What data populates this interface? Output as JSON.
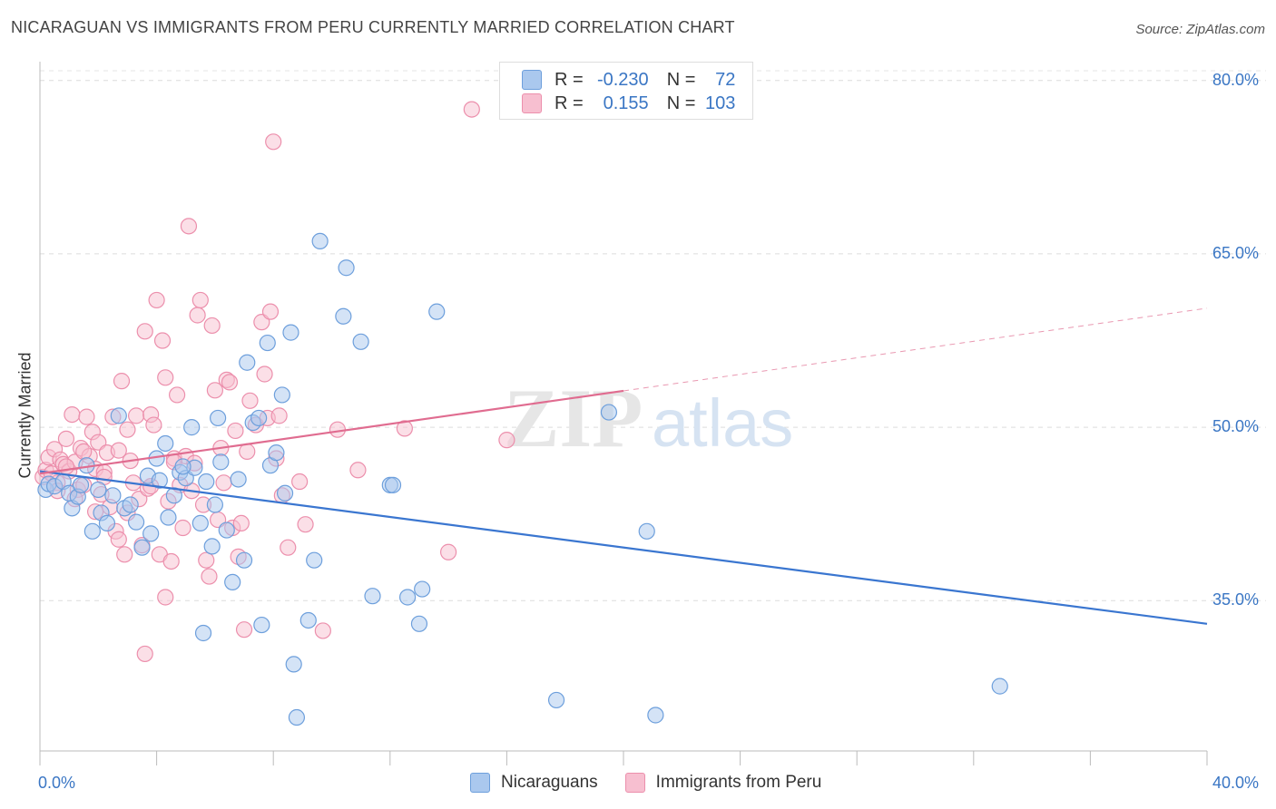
{
  "title": "NICARAGUAN VS IMMIGRANTS FROM PERU CURRENTLY MARRIED CORRELATION CHART",
  "source": "Source: ZipAtlas.com",
  "watermark": {
    "zip": "ZIP",
    "atlas": "atlas"
  },
  "legend": {
    "rows": [
      {
        "r_label": "R =",
        "r_value": "-0.230",
        "n_label": "N =",
        "n_value": "72",
        "color": "#aac8ee",
        "border": "#6d9fdc"
      },
      {
        "r_label": "R =",
        "r_value": "0.155",
        "n_label": "N =",
        "n_value": "103",
        "color": "#f7bfd0",
        "border": "#ec8fac"
      }
    ]
  },
  "chart_data": {
    "type": "scatter",
    "title": "NICARAGUAN VS IMMIGRANTS FROM PERU CURRENTLY MARRIED CORRELATION CHART",
    "xlabel": "",
    "ylabel": "Currently Married",
    "xlim": [
      0,
      40
    ],
    "ylim": [
      22,
      81
    ],
    "x_tick_labels": [
      "0.0%",
      "40.0%"
    ],
    "y_ticks": [
      35,
      50,
      65,
      80
    ],
    "y_tick_labels": [
      "35.0%",
      "50.0%",
      "65.0%",
      "80.0%"
    ],
    "grid": true,
    "legend_position": "bottom",
    "series": [
      {
        "name": "Nicaraguans",
        "color": "#6d9fdc",
        "fill": "#aac8ee",
        "trend": {
          "x": [
            0,
            40
          ],
          "y": [
            46.2,
            33.0
          ],
          "color": "#3a76d0"
        },
        "points": [
          [
            0.2,
            44.6
          ],
          [
            0.3,
            45.1
          ],
          [
            0.5,
            44.9
          ],
          [
            0.8,
            45.3
          ],
          [
            1.0,
            44.3
          ],
          [
            1.1,
            43.0
          ],
          [
            1.3,
            44.0
          ],
          [
            1.4,
            45.0
          ],
          [
            1.6,
            46.7
          ],
          [
            1.8,
            41.0
          ],
          [
            2.0,
            44.6
          ],
          [
            2.1,
            42.6
          ],
          [
            2.3,
            41.7
          ],
          [
            2.5,
            44.1
          ],
          [
            2.7,
            51.0
          ],
          [
            2.9,
            43.0
          ],
          [
            3.1,
            43.3
          ],
          [
            3.3,
            41.8
          ],
          [
            3.5,
            39.6
          ],
          [
            3.7,
            45.8
          ],
          [
            3.8,
            40.8
          ],
          [
            4.0,
            47.3
          ],
          [
            4.1,
            45.4
          ],
          [
            4.3,
            48.6
          ],
          [
            4.4,
            42.2
          ],
          [
            4.6,
            44.1
          ],
          [
            4.8,
            46.1
          ],
          [
            5.0,
            45.6
          ],
          [
            5.2,
            50.0
          ],
          [
            5.3,
            46.5
          ],
          [
            5.5,
            41.7
          ],
          [
            5.7,
            45.3
          ],
          [
            5.9,
            39.7
          ],
          [
            6.1,
            50.8
          ],
          [
            6.2,
            47.0
          ],
          [
            6.4,
            41.1
          ],
          [
            6.6,
            36.6
          ],
          [
            6.8,
            45.5
          ],
          [
            7.0,
            38.5
          ],
          [
            7.1,
            55.6
          ],
          [
            7.3,
            50.4
          ],
          [
            7.5,
            50.8
          ],
          [
            7.6,
            32.9
          ],
          [
            7.8,
            57.3
          ],
          [
            7.9,
            46.7
          ],
          [
            8.1,
            47.8
          ],
          [
            8.3,
            52.8
          ],
          [
            8.4,
            44.3
          ],
          [
            8.6,
            58.2
          ],
          [
            8.7,
            29.5
          ],
          [
            8.8,
            24.9
          ],
          [
            9.2,
            33.3
          ],
          [
            9.4,
            38.5
          ],
          [
            9.6,
            66.1
          ],
          [
            10.4,
            59.6
          ],
          [
            10.5,
            63.8
          ],
          [
            11.0,
            57.4
          ],
          [
            11.4,
            35.4
          ],
          [
            12.0,
            45.0
          ],
          [
            12.1,
            45.0
          ],
          [
            12.6,
            35.3
          ],
          [
            13.0,
            33.0
          ],
          [
            13.1,
            36.0
          ],
          [
            13.6,
            60.0
          ],
          [
            5.6,
            32.2
          ],
          [
            17.7,
            26.4
          ],
          [
            19.5,
            51.3
          ],
          [
            20.8,
            41.0
          ],
          [
            21.1,
            25.1
          ],
          [
            32.9,
            27.6
          ],
          [
            4.9,
            46.6
          ],
          [
            6.0,
            43.3
          ]
        ]
      },
      {
        "name": "Immigrants from Peru",
        "color": "#ec8fac",
        "fill": "#f7bfd0",
        "trend": {
          "x": [
            0,
            40
          ],
          "y": [
            46.0,
            60.3
          ],
          "solid_until_x": 20.0,
          "color": "#e06c90"
        },
        "points": [
          [
            0.1,
            45.7
          ],
          [
            0.2,
            46.3
          ],
          [
            0.3,
            47.4
          ],
          [
            0.4,
            46.0
          ],
          [
            0.5,
            48.1
          ],
          [
            0.6,
            45.2
          ],
          [
            0.7,
            47.2
          ],
          [
            0.8,
            46.8
          ],
          [
            0.9,
            49.0
          ],
          [
            1.0,
            46.2
          ],
          [
            1.1,
            51.1
          ],
          [
            1.2,
            47.0
          ],
          [
            1.3,
            44.6
          ],
          [
            1.4,
            48.2
          ],
          [
            1.5,
            45.0
          ],
          [
            1.6,
            50.9
          ],
          [
            1.7,
            47.5
          ],
          [
            1.8,
            49.6
          ],
          [
            1.9,
            46.4
          ],
          [
            2.0,
            48.7
          ],
          [
            2.1,
            44.2
          ],
          [
            2.2,
            46.1
          ],
          [
            2.3,
            47.8
          ],
          [
            2.4,
            43.1
          ],
          [
            2.5,
            50.9
          ],
          [
            2.6,
            41.0
          ],
          [
            2.7,
            48.0
          ],
          [
            2.8,
            54.0
          ],
          [
            2.9,
            39.0
          ],
          [
            3.0,
            49.8
          ],
          [
            3.1,
            47.1
          ],
          [
            3.2,
            45.2
          ],
          [
            3.3,
            51.0
          ],
          [
            3.4,
            43.8
          ],
          [
            3.5,
            39.8
          ],
          [
            3.6,
            58.3
          ],
          [
            3.7,
            44.7
          ],
          [
            3.8,
            51.1
          ],
          [
            3.9,
            50.2
          ],
          [
            4.0,
            61.0
          ],
          [
            4.1,
            39.0
          ],
          [
            4.2,
            57.5
          ],
          [
            4.3,
            54.3
          ],
          [
            4.4,
            43.6
          ],
          [
            4.5,
            38.4
          ],
          [
            4.6,
            47.3
          ],
          [
            4.7,
            52.8
          ],
          [
            4.8,
            45.0
          ],
          [
            4.9,
            41.3
          ],
          [
            5.0,
            47.5
          ],
          [
            5.1,
            67.4
          ],
          [
            5.2,
            44.5
          ],
          [
            5.3,
            46.9
          ],
          [
            5.4,
            59.7
          ],
          [
            5.5,
            61.0
          ],
          [
            5.6,
            43.3
          ],
          [
            5.7,
            38.5
          ],
          [
            5.8,
            37.1
          ],
          [
            5.9,
            58.8
          ],
          [
            6.0,
            53.2
          ],
          [
            6.1,
            42.0
          ],
          [
            6.2,
            48.2
          ],
          [
            6.3,
            45.2
          ],
          [
            6.4,
            54.1
          ],
          [
            6.5,
            53.9
          ],
          [
            6.6,
            41.3
          ],
          [
            6.7,
            49.7
          ],
          [
            6.8,
            38.8
          ],
          [
            6.9,
            41.7
          ],
          [
            7.0,
            32.5
          ],
          [
            7.1,
            47.9
          ],
          [
            7.2,
            52.3
          ],
          [
            7.4,
            50.2
          ],
          [
            7.6,
            59.1
          ],
          [
            7.7,
            54.6
          ],
          [
            7.8,
            50.8
          ],
          [
            7.9,
            60.0
          ],
          [
            8.0,
            74.7
          ],
          [
            8.1,
            47.3
          ],
          [
            8.2,
            51.0
          ],
          [
            8.3,
            44.1
          ],
          [
            8.5,
            39.6
          ],
          [
            8.9,
            45.3
          ],
          [
            9.1,
            41.6
          ],
          [
            9.7,
            32.4
          ],
          [
            10.2,
            49.8
          ],
          [
            10.9,
            46.3
          ],
          [
            12.5,
            49.9
          ],
          [
            14.0,
            39.2
          ],
          [
            14.8,
            77.5
          ],
          [
            16.0,
            48.9
          ],
          [
            1.5,
            47.9
          ],
          [
            2.2,
            45.7
          ],
          [
            3.0,
            42.6
          ],
          [
            4.6,
            47.0
          ],
          [
            4.3,
            35.3
          ],
          [
            3.6,
            30.4
          ],
          [
            2.7,
            40.3
          ],
          [
            1.9,
            42.7
          ],
          [
            0.6,
            44.5
          ],
          [
            0.9,
            46.6
          ],
          [
            1.2,
            43.8
          ],
          [
            3.8,
            44.9
          ]
        ]
      }
    ]
  },
  "bottom_legend": [
    {
      "label": "Nicaraguans",
      "color": "#aac8ee",
      "border": "#6d9fdc"
    },
    {
      "label": "Immigrants from Peru",
      "color": "#f7bfd0",
      "border": "#ec8fac"
    }
  ]
}
